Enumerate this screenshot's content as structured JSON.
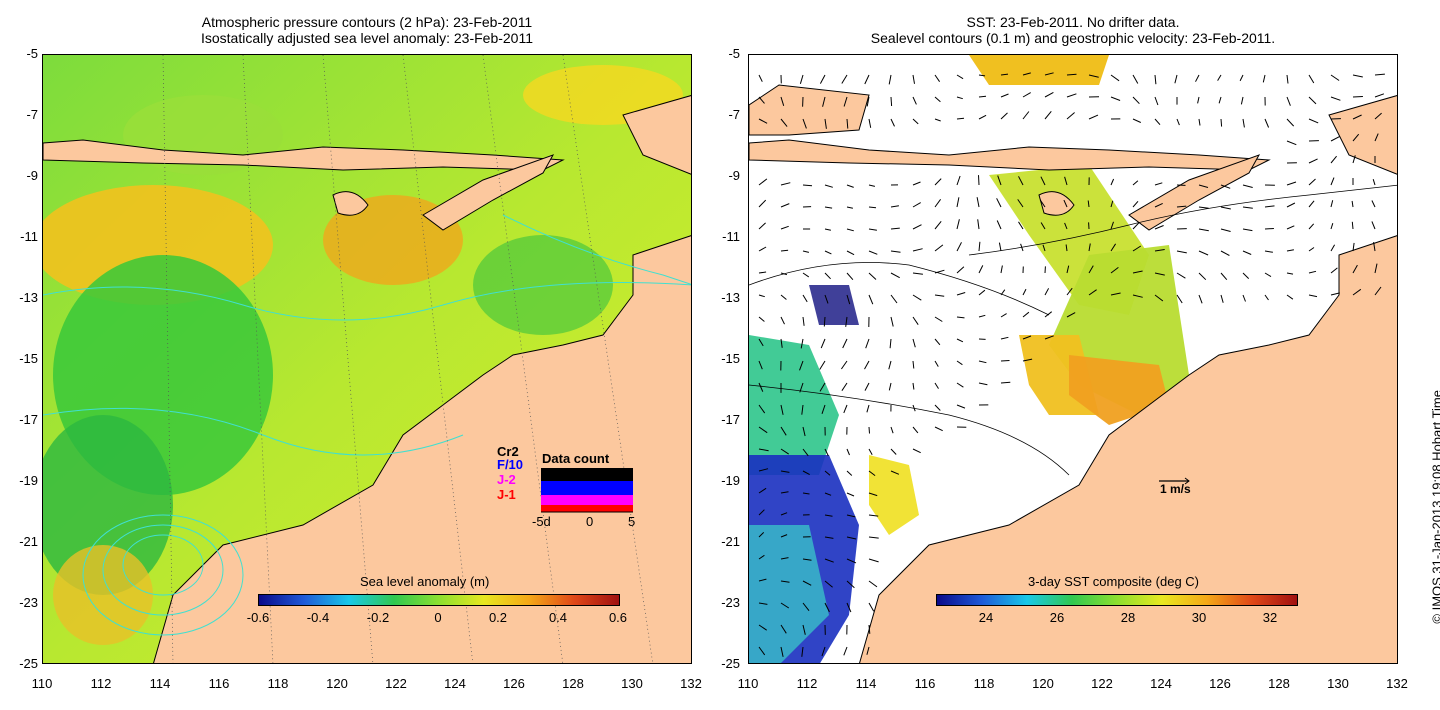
{
  "left": {
    "title_line1": "Atmospheric pressure contours (2 hPa): 23-Feb-2011",
    "title_line2": "Isostatically adjusted sea level anomaly: 23-Feb-2011",
    "colorbar_label": "Sea level anomaly (m)",
    "colorbar_ticks": [
      "-0.6",
      "-0.4",
      "-0.2",
      "0",
      "0.2",
      "0.4",
      "0.6"
    ],
    "data_count": {
      "title": "Data count",
      "series": [
        "Cr2",
        "F/10",
        "J-2",
        "J-1"
      ],
      "series_colors": [
        "#000000",
        "#0000ff",
        "#ff00ff",
        "#ff0000"
      ],
      "axis_ticks": [
        "-5d",
        "0",
        "5"
      ]
    }
  },
  "right": {
    "title_line1": "SST: 23-Feb-2011. No drifter data.",
    "title_line2": "Sealevel contours (0.1 m) and geostrophic velocity: 23-Feb-2011.",
    "colorbar_label": "3-day SST composite (deg C)",
    "colorbar_ticks": [
      "24",
      "26",
      "28",
      "30",
      "32"
    ],
    "scale_arrow_label": "1 m/s"
  },
  "axes": {
    "y_ticks": [
      "-5",
      "-7",
      "-9",
      "-11",
      "-13",
      "-15",
      "-17",
      "-19",
      "-21",
      "-23",
      "-25"
    ],
    "x_ticks": [
      "110",
      "112",
      "114",
      "116",
      "118",
      "120",
      "122",
      "124",
      "126",
      "128",
      "130",
      "132"
    ]
  },
  "credit": "© IMOS 31-Jan-2013 19:08 Hobart Time",
  "colors": {
    "land": "#fcc89e",
    "contour": "#40e0d0"
  }
}
